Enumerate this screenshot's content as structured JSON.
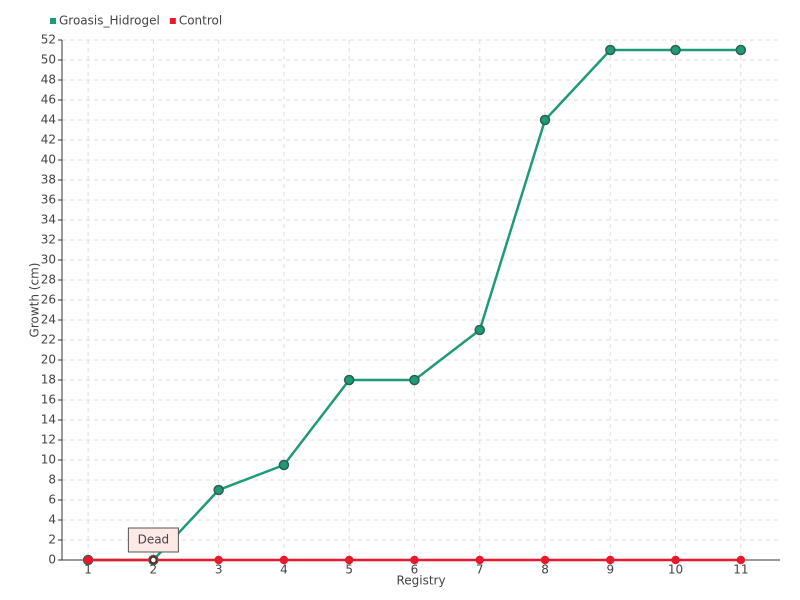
{
  "chart_data": {
    "type": "line",
    "xlabel": "Registry",
    "ylabel": "Growth (cm)",
    "categories": [
      "1",
      "2",
      "3",
      "4",
      "5",
      "6",
      "7",
      "8",
      "9",
      "10",
      "11"
    ],
    "series": [
      {
        "name": "Groasis_Hidrogel",
        "color": "#1f9a78",
        "values": [
          0,
          0,
          7,
          9.5,
          18,
          18,
          23,
          44,
          51,
          51,
          51
        ]
      },
      {
        "name": "Control",
        "color": "#e8192c",
        "values": [
          0,
          0,
          0,
          0,
          0,
          0,
          0,
          0,
          0,
          0,
          0
        ]
      }
    ],
    "ylim": [
      0,
      52
    ],
    "yticks": [
      0,
      2,
      4,
      6,
      8,
      10,
      12,
      14,
      16,
      18,
      20,
      22,
      24,
      26,
      28,
      30,
      32,
      34,
      36,
      38,
      40,
      42,
      44,
      46,
      48,
      50,
      52
    ],
    "grid": true,
    "legend": "top-left",
    "annotations": [
      {
        "text": "Dead",
        "x": "2"
      }
    ]
  }
}
